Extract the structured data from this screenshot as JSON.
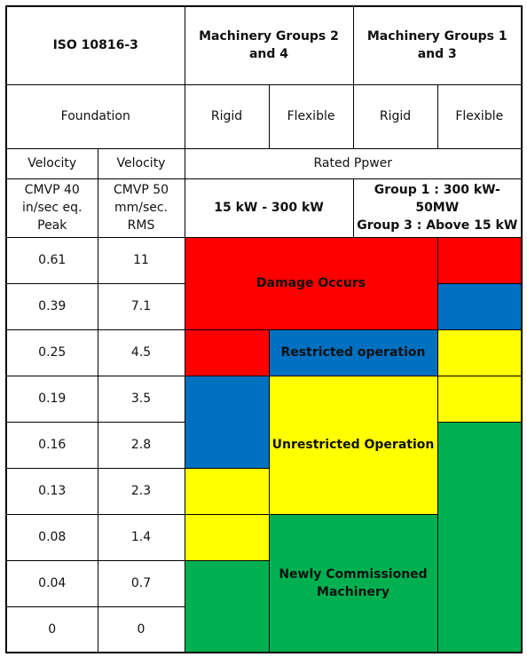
{
  "title": "ISO 10816-3",
  "group_2_4": "Machinery Groups 2 and 4",
  "group_1_3": "Machinery Groups 1 and 3",
  "foundation": "Foundation",
  "rigid": "Rigid",
  "flexible": "Flexible",
  "velocity": "Velocity",
  "rated_power": "Rated Ppwer",
  "cmvp40": "CMVP 40 in/sec eq. Peak",
  "cmvp50": "CMVP 50 mm/sec. RMS",
  "power_2_4": "15 kW - 300 kW",
  "power_1_3_line1": "Group 1 : 300 kW-50MW",
  "power_1_3_line2": "Group 3 : Above 15 kW",
  "rows": [
    {
      "in_sec": "0.61",
      "mm_sec": "11"
    },
    {
      "in_sec": "0.39",
      "mm_sec": "7.1"
    },
    {
      "in_sec": "0.25",
      "mm_sec": "4.5"
    },
    {
      "in_sec": "0.19",
      "mm_sec": "3.5"
    },
    {
      "in_sec": "0.16",
      "mm_sec": "2.8"
    },
    {
      "in_sec": "0.13",
      "mm_sec": "2.3"
    },
    {
      "in_sec": "0.08",
      "mm_sec": "1.4"
    },
    {
      "in_sec": "0.04",
      "mm_sec": "0.7"
    },
    {
      "in_sec": "0",
      "mm_sec": "0"
    }
  ],
  "zones": {
    "damage": "Damage Occurs",
    "restricted": "Restricted operation",
    "unrestricted": "Unrestricted Operation",
    "newly": "Newly Commissioned Machinery"
  },
  "colors": {
    "red": "#ff0000",
    "blue": "#0070c0",
    "yellow": "#ffff00",
    "green": "#00b050"
  }
}
